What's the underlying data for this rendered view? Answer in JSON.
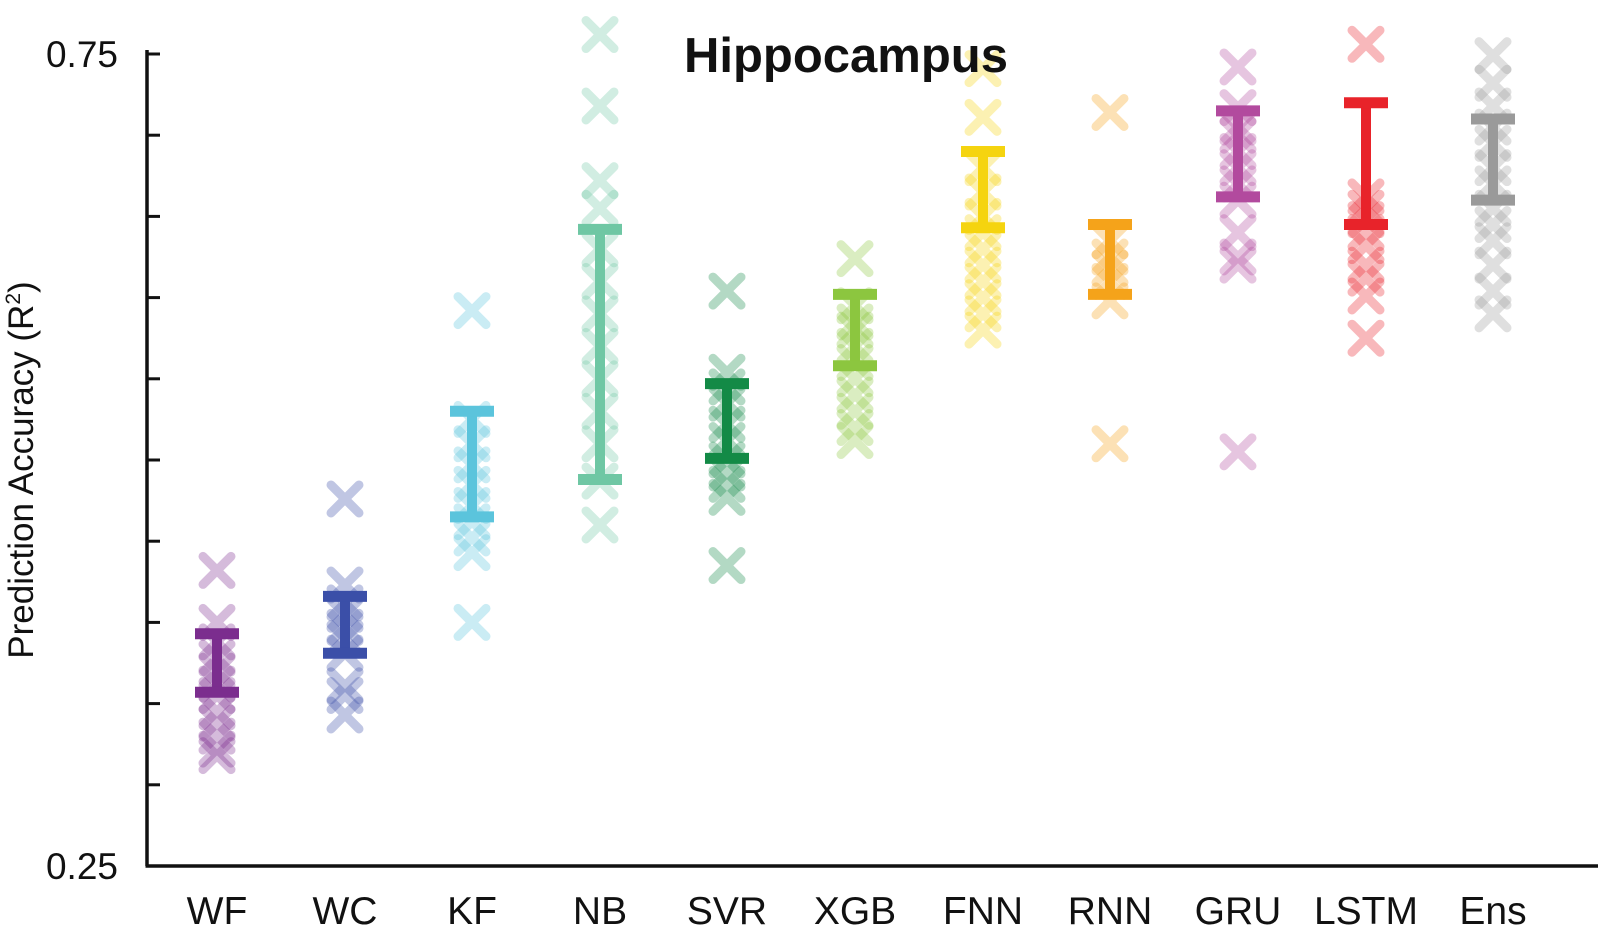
{
  "chart_data": {
    "type": "scatter",
    "title": "Hippocampus",
    "ylabel": "Prediction Accuracy (R",
    "ylabel_superscript": "2",
    "ylabel_close": ")",
    "xlabel": "",
    "ylim": [
      0.25,
      0.75
    ],
    "y_tick_labels": [
      "0.25",
      "0.75"
    ],
    "y_minor_ticks": [
      0.3,
      0.35,
      0.4,
      0.45,
      0.5,
      0.55,
      0.6,
      0.65,
      0.7
    ],
    "grid": false,
    "legend": "none",
    "categories": [
      "WF",
      "WC",
      "KF",
      "NB",
      "SVR",
      "XGB",
      "FNN",
      "RNN",
      "GRU",
      "LSTM",
      "Ens"
    ],
    "series": [
      {
        "color": "#7b2d8e",
        "mean_low": 0.357,
        "mean_high": 0.393,
        "points": [
          0.432,
          0.4,
          0.388,
          0.378,
          0.37,
          0.362,
          0.355,
          0.345,
          0.338,
          0.33,
          0.322,
          0.318
        ]
      },
      {
        "color": "#3b4fa8",
        "mean_low": 0.381,
        "mean_high": 0.416,
        "points": [
          0.476,
          0.423,
          0.412,
          0.405,
          0.397,
          0.39,
          0.381,
          0.361,
          0.355,
          0.343
        ]
      },
      {
        "color": "#5bc4dc",
        "mean_low": 0.465,
        "mean_high": 0.53,
        "points": [
          0.592,
          0.525,
          0.51,
          0.497,
          0.485,
          0.472,
          0.462,
          0.452,
          0.443,
          0.4
        ]
      },
      {
        "color": "#6fc7a4",
        "mean_low": 0.488,
        "mean_high": 0.642,
        "points": [
          0.762,
          0.718,
          0.672,
          0.655,
          0.63,
          0.61,
          0.59,
          0.57,
          0.55,
          0.53,
          0.51,
          0.487,
          0.46
        ]
      },
      {
        "color": "#138a46",
        "mean_low": 0.501,
        "mean_high": 0.547,
        "points": [
          0.604,
          0.554,
          0.545,
          0.535,
          0.522,
          0.512,
          0.5,
          0.492,
          0.485,
          0.477,
          0.435
        ]
      },
      {
        "color": "#8cc63f",
        "mean_low": 0.558,
        "mean_high": 0.602,
        "points": [
          0.624,
          0.595,
          0.585,
          0.58,
          0.57,
          0.56,
          0.55,
          0.54,
          0.53,
          0.52,
          0.512
        ]
      },
      {
        "color": "#f5d40f",
        "mean_low": 0.643,
        "mean_high": 0.69,
        "points": [
          0.741,
          0.711,
          0.68,
          0.665,
          0.65,
          0.64,
          0.63,
          0.62,
          0.61,
          0.6,
          0.59,
          0.58
        ]
      },
      {
        "color": "#f5a31a",
        "mean_low": 0.602,
        "mean_high": 0.645,
        "points": [
          0.714,
          0.635,
          0.625,
          0.618,
          0.61,
          0.598,
          0.51
        ]
      },
      {
        "color": "#b24a9e",
        "mean_low": 0.662,
        "mean_high": 0.715,
        "points": [
          0.742,
          0.717,
          0.705,
          0.7,
          0.69,
          0.68,
          0.67,
          0.66,
          0.64,
          0.625,
          0.62,
          0.505
        ]
      },
      {
        "color": "#e8232a",
        "mean_low": 0.645,
        "mean_high": 0.72,
        "points": [
          0.756,
          0.662,
          0.655,
          0.648,
          0.64,
          0.632,
          0.62,
          0.612,
          0.601,
          0.575
        ]
      },
      {
        "color": "#9a9a9a",
        "mean_low": 0.66,
        "mean_high": 0.71,
        "points": [
          0.749,
          0.732,
          0.718,
          0.705,
          0.695,
          0.68,
          0.67,
          0.655,
          0.645,
          0.635,
          0.62,
          0.604,
          0.59
        ]
      }
    ]
  }
}
